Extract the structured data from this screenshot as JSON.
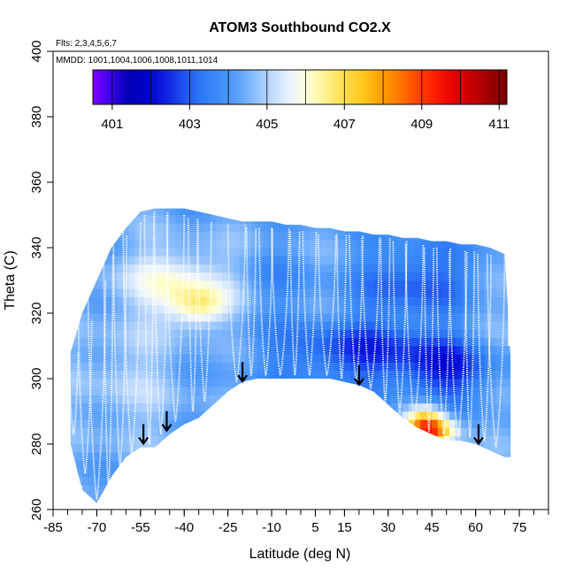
{
  "chart_data": {
    "type": "heatmap",
    "title": "ATOM3 Southbound CO2.X",
    "flights_label": "Flts: 2,3,4,5,6,7",
    "dates_label": "MMDD: 1001,1004,1006,1008,1011,1014",
    "xlabel": "Latitude (deg N)",
    "ylabel": "Theta (C)",
    "xlim": [
      -85,
      85
    ],
    "ylim": [
      260,
      400
    ],
    "x_tick_labels": [
      "-85",
      "-70",
      "-55",
      "-40",
      "-25",
      "-10",
      "5",
      "15",
      "30",
      "45",
      "60",
      "75"
    ],
    "x_tick_values": [
      -85,
      -70,
      -55,
      -40,
      -25,
      -10,
      5,
      15,
      30,
      45,
      60,
      75
    ],
    "x_minor_step": 5,
    "y_ticks": [
      260,
      280,
      300,
      320,
      340,
      360,
      380,
      400
    ],
    "colorbar": {
      "min": 400.5,
      "max": 411.2,
      "tick_values": [
        401,
        403,
        405,
        407,
        409,
        411
      ],
      "tick_labels": [
        "401",
        "403",
        "405",
        "407",
        "409",
        "411"
      ],
      "colors": [
        "#7f00ff",
        "#3a00e8",
        "#0000b4",
        "#0000c8",
        "#0d1ee0",
        "#1e50f0",
        "#2d78f5",
        "#3c8cf8",
        "#5aa0fa",
        "#8cbefc",
        "#c3dcfe",
        "#ecf4ff",
        "#ffffd2",
        "#fff08c",
        "#ffdc46",
        "#ffc81e",
        "#ffa000",
        "#ff7800",
        "#ff4600",
        "#ff1e00",
        "#e60000",
        "#c80000",
        "#a00000",
        "#780000"
      ]
    },
    "tropopause_arrows": [
      {
        "lat": -54,
        "theta": 285
      },
      {
        "lat": -46,
        "theta": 289
      },
      {
        "lat": -20,
        "theta": 304
      },
      {
        "lat": 20,
        "theta": 303
      },
      {
        "lat": 61,
        "theta": 285
      }
    ],
    "field_bottom": [
      [
        -79,
        280
      ],
      [
        -75,
        266
      ],
      [
        -70,
        262
      ],
      [
        -65,
        270
      ],
      [
        -60,
        276
      ],
      [
        -55,
        279
      ],
      [
        -50,
        279
      ],
      [
        -45,
        283
      ],
      [
        -40,
        286
      ],
      [
        -35,
        288
      ],
      [
        -30,
        292
      ],
      [
        -25,
        296
      ],
      [
        -20,
        299
      ],
      [
        -15,
        300
      ],
      [
        -10,
        300
      ],
      [
        -5,
        300
      ],
      [
        0,
        300
      ],
      [
        5,
        300
      ],
      [
        10,
        300
      ],
      [
        15,
        299
      ],
      [
        20,
        298
      ],
      [
        25,
        296
      ],
      [
        30,
        292
      ],
      [
        35,
        288
      ],
      [
        40,
        285
      ],
      [
        45,
        283
      ],
      [
        50,
        281
      ],
      [
        55,
        281
      ],
      [
        60,
        280
      ],
      [
        65,
        278
      ],
      [
        70,
        276
      ],
      [
        72,
        276
      ]
    ],
    "field_top": [
      [
        -79,
        308
      ],
      [
        -75,
        320
      ],
      [
        -70,
        330
      ],
      [
        -65,
        340
      ],
      [
        -60,
        346
      ],
      [
        -55,
        351
      ],
      [
        -50,
        352
      ],
      [
        -45,
        352
      ],
      [
        -40,
        352
      ],
      [
        -35,
        351
      ],
      [
        -30,
        350
      ],
      [
        -25,
        349
      ],
      [
        -20,
        348
      ],
      [
        -15,
        348
      ],
      [
        -10,
        348
      ],
      [
        -5,
        347
      ],
      [
        0,
        347
      ],
      [
        5,
        346
      ],
      [
        10,
        346
      ],
      [
        15,
        345
      ],
      [
        20,
        345
      ],
      [
        25,
        344
      ],
      [
        30,
        344
      ],
      [
        35,
        343
      ],
      [
        40,
        343
      ],
      [
        45,
        342
      ],
      [
        50,
        342
      ],
      [
        55,
        341
      ],
      [
        60,
        341
      ],
      [
        65,
        340
      ],
      [
        70,
        338
      ],
      [
        72,
        306
      ]
    ],
    "anomalies": [
      {
        "lat": -42,
        "theta": 330,
        "value": 405.8,
        "dlat": 20,
        "dtheta": 10
      },
      {
        "lat": -35,
        "theta": 322,
        "value": 406.2,
        "dlat": 10,
        "dtheta": 6
      },
      {
        "lat": -60,
        "theta": 300,
        "value": 404.9,
        "dlat": 20,
        "dtheta": 20
      },
      {
        "lat": 20,
        "theta": 308,
        "value": 402.6,
        "dlat": 30,
        "dtheta": 10
      },
      {
        "lat": 40,
        "theta": 330,
        "value": 402.9,
        "dlat": 20,
        "dtheta": 12
      },
      {
        "lat": 50,
        "theta": 302,
        "value": 402.7,
        "dlat": 15,
        "dtheta": 10
      },
      {
        "lat": 43,
        "theta": 286,
        "value": 407.6,
        "dlat": 7,
        "dtheta": 6
      },
      {
        "lat": 46,
        "theta": 284,
        "value": 406.7,
        "dlat": 8,
        "dtheta": 4
      },
      {
        "lat": -10,
        "theta": 330,
        "value": 403.8,
        "dlat": 16,
        "dtheta": 10
      },
      {
        "lat": 60,
        "theta": 320,
        "value": 404.6,
        "dlat": 12,
        "dtheta": 10
      }
    ],
    "profiles": [
      {
        "lat": -78,
        "top": 308,
        "bottom": 282
      },
      {
        "lat": -74,
        "top": 318,
        "bottom": 270
      },
      {
        "lat": -70,
        "top": 330,
        "bottom": 262
      },
      {
        "lat": -66,
        "top": 338,
        "bottom": 266
      },
      {
        "lat": -62,
        "top": 344,
        "bottom": 272
      },
      {
        "lat": -58,
        "top": 348,
        "bottom": 276
      },
      {
        "lat": -52,
        "top": 350,
        "bottom": 279
      },
      {
        "lat": -48,
        "top": 351,
        "bottom": 282
      },
      {
        "lat": -43,
        "top": 350,
        "bottom": 286
      },
      {
        "lat": -37,
        "top": 349,
        "bottom": 289
      },
      {
        "lat": -33,
        "top": 348,
        "bottom": 292
      },
      {
        "lat": -22,
        "top": 347,
        "bottom": 298
      },
      {
        "lat": -17,
        "top": 346,
        "bottom": 300
      },
      {
        "lat": -12,
        "top": 346,
        "bottom": 300
      },
      {
        "lat": -7,
        "top": 346,
        "bottom": 300
      },
      {
        "lat": -2,
        "top": 345,
        "bottom": 300
      },
      {
        "lat": 3,
        "top": 345,
        "bottom": 300
      },
      {
        "lat": 9,
        "top": 344,
        "bottom": 300
      },
      {
        "lat": 14,
        "top": 344,
        "bottom": 299
      },
      {
        "lat": 19,
        "top": 344,
        "bottom": 298
      },
      {
        "lat": 24,
        "top": 343,
        "bottom": 296
      },
      {
        "lat": 29,
        "top": 343,
        "bottom": 292
      },
      {
        "lat": 34,
        "top": 342,
        "bottom": 289
      },
      {
        "lat": 39,
        "top": 341,
        "bottom": 286
      },
      {
        "lat": 44,
        "top": 340,
        "bottom": 283
      },
      {
        "lat": 49,
        "top": 340,
        "bottom": 282
      },
      {
        "lat": 54,
        "top": 339,
        "bottom": 281
      },
      {
        "lat": 58,
        "top": 339,
        "bottom": 281
      },
      {
        "lat": 63,
        "top": 338,
        "bottom": 280
      },
      {
        "lat": 67,
        "top": 338,
        "bottom": 278
      }
    ]
  }
}
